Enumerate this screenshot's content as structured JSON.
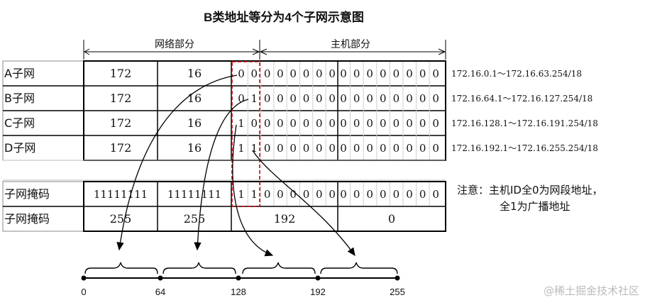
{
  "title": "B类地址等分为4个子网示意图",
  "network_part_label": "网络部分",
  "host_part_label": "主机部分",
  "subnet_rows": [
    {
      "label": "A子网",
      "octet1": "172",
      "octet2": "16",
      "bits": [
        "0",
        "0",
        "0",
        "0",
        "0",
        "0",
        "0",
        "0",
        "0",
        "0",
        "0",
        "0",
        "0",
        "0",
        "0",
        "0"
      ],
      "range": "172.16.0.1～172.16.63.254/18"
    },
    {
      "label": "B子网",
      "octet1": "172",
      "octet2": "16",
      "bits": [
        "0",
        "1",
        "0",
        "0",
        "0",
        "0",
        "0",
        "0",
        "0",
        "0",
        "0",
        "0",
        "0",
        "0",
        "0",
        "0"
      ],
      "range": "172.16.64.1～172.16.127.254/18"
    },
    {
      "label": "C子网",
      "octet1": "172",
      "octet2": "16",
      "bits": [
        "1",
        "0",
        "0",
        "0",
        "0",
        "0",
        "0",
        "0",
        "0",
        "0",
        "0",
        "0",
        "0",
        "0",
        "0",
        "0"
      ],
      "range": "172.16.128.1～172.16.191.254/18"
    },
    {
      "label": "D子网",
      "octet1": "172",
      "octet2": "16",
      "bits": [
        "1",
        "1",
        "0",
        "0",
        "0",
        "0",
        "0",
        "0",
        "0",
        "0",
        "0",
        "0",
        "0",
        "0",
        "0",
        "0"
      ],
      "range": "172.16.192.1～172.16.255.254/18"
    }
  ],
  "mask_binary": {
    "label": "子网掩码",
    "octet1": "11111111",
    "octet2": "11111111",
    "bits": [
      "1",
      "1",
      "0",
      "0",
      "0",
      "0",
      "0",
      "0",
      "0",
      "0",
      "0",
      "0",
      "0",
      "0",
      "0",
      "0"
    ]
  },
  "mask_decimal": {
    "label": "子网掩码",
    "octet1": "255",
    "octet2": "255",
    "octet3": "192",
    "octet4": "0"
  },
  "note_line1": "注意：主机ID全0为网段地址，",
  "note_line2": "全1为广播地址",
  "scale_ticks": [
    "0",
    "64",
    "128",
    "192",
    "255"
  ],
  "watermark": "@稀土掘金技术社区",
  "colors": {
    "highlight": "#cc0000",
    "line": "#000000",
    "grid": "#cccccc"
  }
}
